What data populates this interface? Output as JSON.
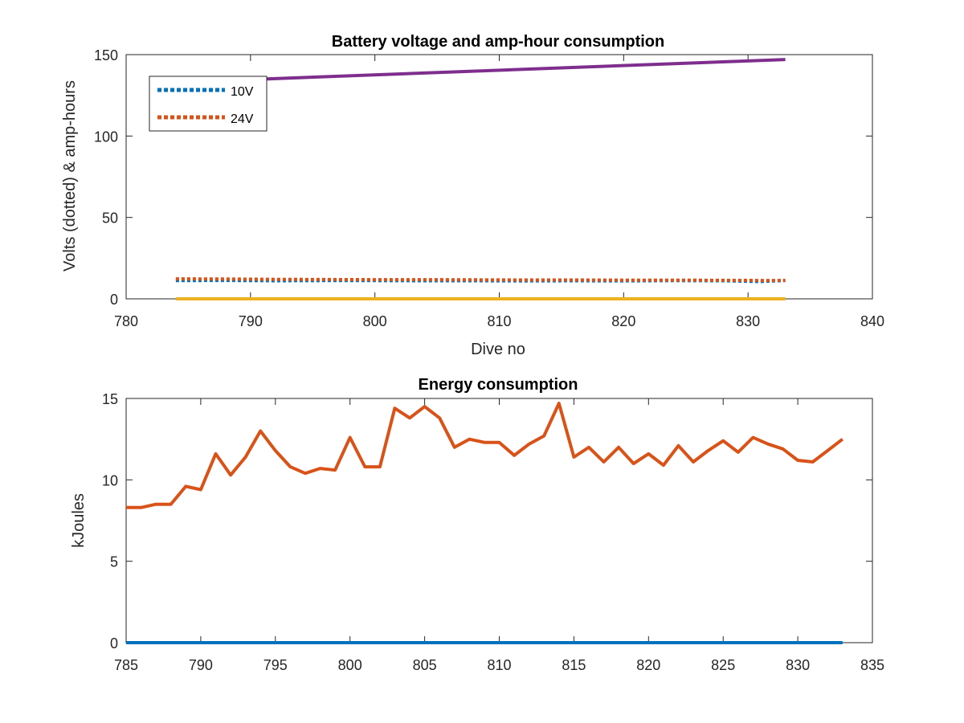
{
  "figure": {
    "background": "#ffffff"
  },
  "chart_data": [
    {
      "type": "line",
      "title": "Battery voltage and amp-hour consumption",
      "xlabel": "Dive no",
      "ylabel": "Volts (dotted) & amp-hours",
      "xlim": [
        780,
        840
      ],
      "ylim": [
        0,
        150
      ],
      "xticks": [
        780,
        790,
        800,
        810,
        820,
        830,
        840
      ],
      "yticks": [
        0,
        50,
        100,
        150
      ],
      "grid": false,
      "legend": {
        "placement": "top-left",
        "entries": [
          "10V",
          "24V"
        ]
      },
      "series": [
        {
          "name": "10V",
          "style": "dotted",
          "color": "#0072BD",
          "x": [
            784,
            788,
            792,
            796,
            800,
            804,
            808,
            812,
            816,
            820,
            824,
            828,
            831,
            833
          ],
          "y": [
            11.2,
            11.3,
            11.1,
            11.2,
            11.2,
            11.1,
            11.1,
            11.0,
            11.1,
            11.0,
            11.2,
            11.1,
            10.6,
            11.3
          ]
        },
        {
          "name": "24V",
          "style": "dotted",
          "color": "#D95319",
          "x": [
            784,
            788,
            792,
            796,
            800,
            804,
            808,
            812,
            816,
            820,
            824,
            828,
            831,
            833
          ],
          "y": [
            12.3,
            12.2,
            12.0,
            11.9,
            11.8,
            11.8,
            11.7,
            11.6,
            11.6,
            11.5,
            11.5,
            11.4,
            11.3,
            11.3
          ]
        },
        {
          "style": "solid",
          "color": "#EDB120",
          "x": [
            784,
            833
          ],
          "y": [
            0,
            0
          ]
        },
        {
          "style": "solid",
          "color": "#7E2F8E",
          "x": [
            784,
            833
          ],
          "y": [
            133,
            147
          ]
        }
      ]
    },
    {
      "type": "line",
      "title": "Energy consumption",
      "xlabel": "",
      "ylabel": "kJoules",
      "xlim": [
        785,
        835
      ],
      "ylim": [
        0,
        15
      ],
      "xticks": [
        785,
        790,
        795,
        800,
        805,
        810,
        815,
        820,
        825,
        830,
        835
      ],
      "yticks": [
        0,
        5,
        10,
        15
      ],
      "grid": false,
      "series": [
        {
          "style": "solid",
          "color": "#D95319",
          "x": [
            785,
            786,
            787,
            788,
            789,
            790,
            791,
            792,
            793,
            794,
            795,
            796,
            797,
            798,
            799,
            800,
            801,
            802,
            803,
            804,
            805,
            806,
            807,
            808,
            809,
            810,
            811,
            812,
            813,
            814,
            815,
            816,
            817,
            818,
            819,
            820,
            821,
            822,
            823,
            824,
            825,
            826,
            827,
            828,
            829,
            830,
            831,
            832,
            833
          ],
          "y": [
            8.3,
            8.3,
            8.5,
            8.5,
            9.6,
            9.4,
            11.6,
            10.3,
            11.4,
            13.0,
            11.8,
            10.8,
            10.4,
            10.7,
            10.6,
            12.6,
            10.8,
            10.8,
            14.4,
            13.8,
            14.5,
            13.8,
            12.0,
            12.5,
            12.3,
            12.3,
            11.5,
            12.2,
            12.7,
            14.7,
            11.4,
            12.0,
            11.1,
            12.0,
            11.0,
            11.6,
            10.9,
            12.1,
            11.1,
            11.8,
            12.4,
            11.7,
            12.6,
            12.2,
            11.9,
            11.2,
            11.1,
            11.8,
            12.5
          ]
        },
        {
          "style": "solid",
          "color": "#0072BD",
          "x": [
            785,
            833
          ],
          "y": [
            0,
            0
          ]
        }
      ]
    }
  ]
}
